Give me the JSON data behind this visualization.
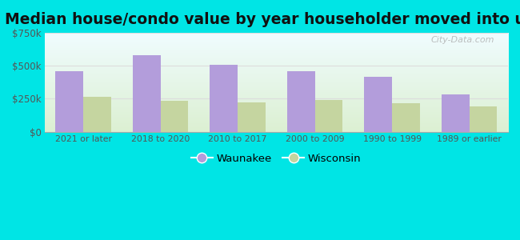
{
  "title": "Median house/condo value by year householder moved into unit",
  "categories": [
    "2021 or later",
    "2018 to 2020",
    "2010 to 2017",
    "2000 to 2009",
    "1990 to 1999",
    "1989 or earlier"
  ],
  "waunakee_values": [
    460000,
    580000,
    510000,
    460000,
    415000,
    280000
  ],
  "wisconsin_values": [
    263000,
    237000,
    225000,
    238000,
    218000,
    193000
  ],
  "waunakee_color": "#b39ddb",
  "wisconsin_color": "#c5d5a0",
  "background_color": "#00e5e5",
  "ylim": [
    0,
    750000
  ],
  "yticks": [
    0,
    250000,
    500000,
    750000
  ],
  "ytick_labels": [
    "$0",
    "$250k",
    "$500k",
    "$750k"
  ],
  "title_fontsize": 13.5,
  "legend_labels": [
    "Waunakee",
    "Wisconsin"
  ],
  "bar_width": 0.36,
  "watermark": "City-Data.com"
}
